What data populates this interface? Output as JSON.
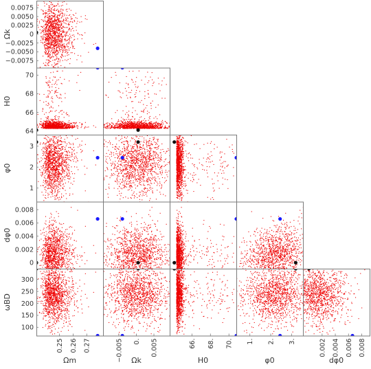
{
  "chart_data": {
    "type": "scatter",
    "title": "",
    "layout": "lower-triangular corner plot",
    "point_color": "#ee0000",
    "marker_colors": {
      "blue": "#1a1aff",
      "black": "#111111"
    },
    "variables": [
      {
        "key": "Om",
        "label": "Ωm",
        "range": [
          0.233,
          0.282
        ],
        "ticks": [
          0.25,
          0.26,
          0.27
        ],
        "tick_labels": [
          "0.25",
          "0.26",
          "0.27"
        ]
      },
      {
        "key": "Ok",
        "label": "Ωk",
        "range": [
          -0.0095,
          0.0095
        ],
        "ticks": [
          0.0075,
          0.005,
          0.0025,
          0,
          -0.0025,
          -0.005,
          -0.0075
        ],
        "tick_labels": [
          "0.0075",
          "0.0050",
          "0.0025",
          "0",
          "−0.0025",
          "−0.0050",
          "−0.0075"
        ],
        "x_ticks": [
          -0.005,
          0,
          0.005
        ],
        "x_tick_labels": [
          "−0.005",
          "0.",
          "0.005"
        ]
      },
      {
        "key": "H0",
        "label": "H0",
        "range": [
          63.6,
          70.8
        ],
        "ticks": [
          64,
          66,
          68,
          70
        ],
        "tick_labels": [
          "64",
          "66",
          "68",
          "70"
        ],
        "x_ticks": [
          66,
          68,
          70
        ],
        "x_tick_labels": [
          "66.",
          "68.",
          "70."
        ]
      },
      {
        "key": "phi0",
        "label": "φ0",
        "range": [
          0.35,
          3.55
        ],
        "ticks": [
          1,
          2,
          3
        ],
        "tick_labels": [
          "1",
          "2",
          "3"
        ],
        "x_ticks": [
          1,
          2,
          3
        ],
        "x_tick_labels": [
          "1.",
          "2.",
          "3."
        ]
      },
      {
        "key": "dphi0",
        "label": "dφ0",
        "range": [
          -0.0009,
          0.0092
        ],
        "ticks": [
          0,
          0.002,
          0.004,
          0.006,
          0.008
        ],
        "tick_labels": [
          "0",
          "0.002",
          "0.004",
          "0.006",
          "0.008"
        ],
        "x_ticks": [
          0.002,
          0.004,
          0.006,
          0.008
        ],
        "x_tick_labels": [
          "0.002",
          "0.004",
          "0.006",
          "0.008"
        ]
      },
      {
        "key": "wBD",
        "label": "ωBD",
        "range": [
          65,
          345
        ],
        "ticks": [
          100,
          150,
          200,
          250,
          300
        ],
        "tick_labels": [
          "100",
          "150",
          "200",
          "250",
          "300"
        ]
      }
    ],
    "distributions": {
      "Om": {
        "center": 0.241,
        "spread": 0.009
      },
      "Ok": {
        "center": 0.0,
        "spread": 0.0045
      },
      "H0": {
        "core": 64.3,
        "core_spread": 0.35,
        "tail_to": 70.5
      },
      "phi0": {
        "center": 2.2,
        "spread": 0.75
      },
      "dphi0": {
        "center": 0.0012,
        "spread": 0.0022
      },
      "wBD": {
        "center": 240,
        "spread": 60
      }
    },
    "highlight_points": [
      {
        "color": "blue",
        "Om": 0.278,
        "Ok": -0.004,
        "H0": 70.8,
        "phi0": 2.45,
        "dphi0": 0.0066,
        "wBD": 65
      },
      {
        "color": "black",
        "Om": 0.233,
        "Ok": 0.0005,
        "H0": 64.1,
        "phi0": 3.2,
        "dphi0": 0.0,
        "wBD": 345
      }
    ]
  }
}
